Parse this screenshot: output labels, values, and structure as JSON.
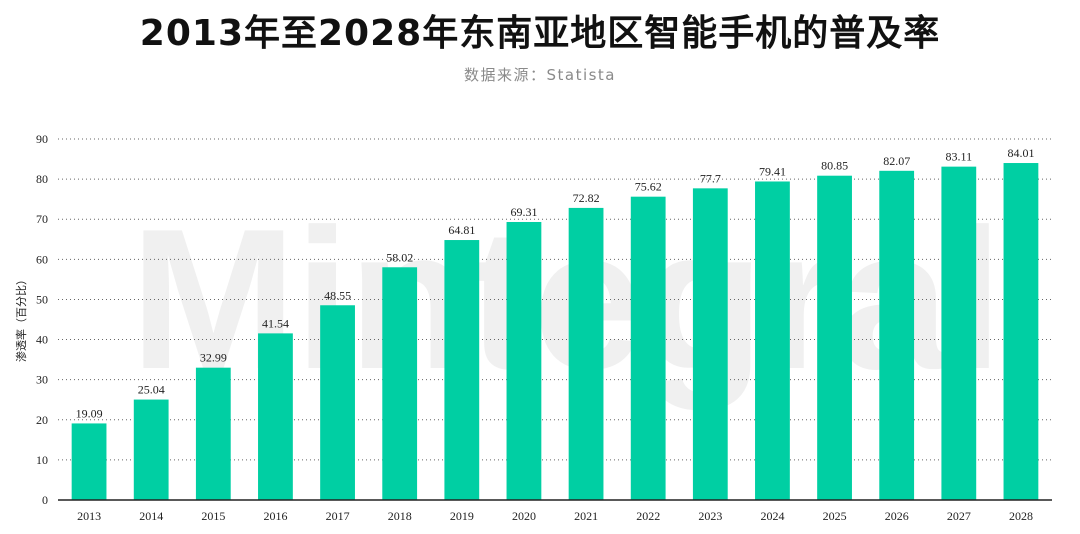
{
  "title": "2013年至2028年东南亚地区智能手机的普及率",
  "subtitle": "数据来源：Statista",
  "watermark": "Mintegral",
  "colors": {
    "bar": "#00cfa3",
    "axis": "#222222",
    "grid": "#666666",
    "text": "#222222"
  },
  "chart_data": {
    "type": "bar",
    "categories": [
      "2013",
      "2014",
      "2015",
      "2016",
      "2017",
      "2018",
      "2019",
      "2020",
      "2021",
      "2022",
      "2023",
      "2024",
      "2025",
      "2026",
      "2027",
      "2028"
    ],
    "values": [
      19.09,
      25.04,
      32.99,
      41.54,
      48.55,
      58.02,
      64.81,
      69.31,
      72.82,
      75.62,
      77.7,
      79.41,
      80.85,
      82.07,
      83.11,
      84.01
    ],
    "value_labels": [
      "19.09",
      "25.04",
      "32.99",
      "41.54",
      "48.55",
      "58.02",
      "64.81",
      "69.31",
      "72.82",
      "75.62",
      "77.7",
      "79.41",
      "80.85",
      "82.07",
      "83.11",
      "84.01"
    ],
    "xlabel": "",
    "ylabel": "渗透率（百分比）",
    "ylim": [
      0,
      90
    ],
    "yticks": [
      0,
      10,
      20,
      30,
      40,
      50,
      60,
      70,
      80,
      90
    ],
    "grid": "horizontal dotted",
    "legend": "none"
  }
}
